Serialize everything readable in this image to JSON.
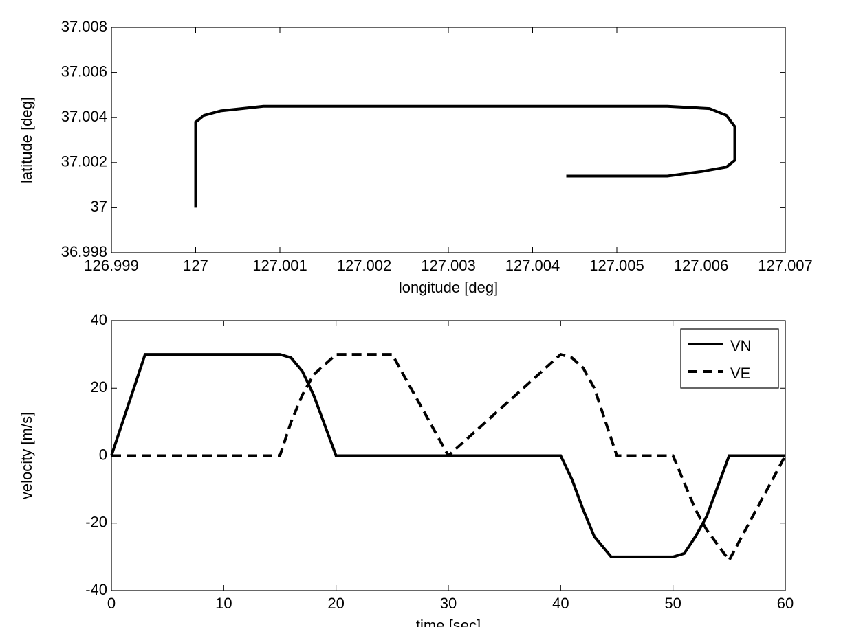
{
  "chart_data": [
    {
      "type": "line",
      "xlabel": "longitude [deg]",
      "ylabel": "latitude [deg]",
      "x": [
        127,
        127,
        127.0001,
        127.0003,
        127.0008,
        127.0056,
        127.0061,
        127.0063,
        127.0064,
        127.0064,
        127.0063,
        127.006,
        127.0056,
        127.0044
      ],
      "values": [
        37,
        37.0038,
        37.0041,
        37.0043,
        37.0045,
        37.0045,
        37.0044,
        37.0041,
        37.0036,
        37.0021,
        37.0018,
        37.0016,
        37.0014,
        37.0014
      ],
      "color": "#000000",
      "xlim": [
        126.999,
        127.007
      ],
      "xticks": [
        126.999,
        127,
        127.001,
        127.002,
        127.003,
        127.004,
        127.005,
        127.006,
        127.007
      ],
      "ylim": [
        36.998,
        37.008
      ],
      "yticks": [
        36.998,
        37,
        37.002,
        37.004,
        37.006,
        37.008
      ]
    },
    {
      "type": "line",
      "xlabel": "time [sec]",
      "ylabel": "velocity [m/s]",
      "x": [
        0,
        3,
        15,
        16,
        17,
        18,
        20,
        25,
        30,
        40,
        41,
        42,
        43,
        44.5,
        45,
        50,
        51,
        52,
        53,
        55,
        60
      ],
      "series": [
        {
          "name": "VN",
          "color": "#000000",
          "style": "solid",
          "values": [
            0,
            30,
            30,
            29,
            25,
            18,
            0,
            0,
            0,
            0,
            -7,
            -16,
            -24,
            -30,
            -30,
            -30,
            -29,
            -24,
            -18,
            0,
            0
          ]
        },
        {
          "name": "VE",
          "color": "#000000",
          "style": "dashed",
          "values": [
            0,
            0,
            0,
            10,
            18,
            24,
            30,
            30,
            0,
            30,
            29,
            26,
            20,
            5,
            0,
            0,
            -8,
            -16,
            -22,
            -31,
            0
          ]
        }
      ],
      "legend": "upper right",
      "xlim": [
        0,
        60
      ],
      "xticks": [
        0,
        10,
        20,
        30,
        40,
        50,
        60
      ],
      "ylim": [
        -40,
        40
      ],
      "yticks": [
        -40,
        -20,
        0,
        20,
        40
      ]
    }
  ]
}
